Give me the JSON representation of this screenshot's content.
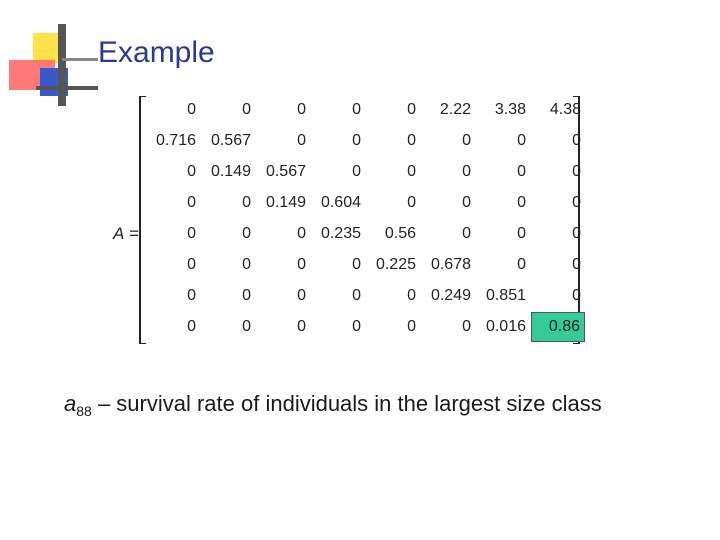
{
  "slide": {
    "title": "Example",
    "matrix_symbol": "A",
    "matrix_equals": " =",
    "matrix": [
      [
        "0",
        "0",
        "0",
        "0",
        "0",
        "2.22",
        "3.38",
        "4.38"
      ],
      [
        "0.716",
        "0.567",
        "0",
        "0",
        "0",
        "0",
        "0",
        "0"
      ],
      [
        "0",
        "0.149",
        "0.567",
        "0",
        "0",
        "0",
        "0",
        "0"
      ],
      [
        "0",
        "0",
        "0.149",
        "0.604",
        "0",
        "0",
        "0",
        "0"
      ],
      [
        "0",
        "0",
        "0",
        "0.235",
        "0.56",
        "0",
        "0",
        "0"
      ],
      [
        "0",
        "0",
        "0",
        "0",
        "0.225",
        "0.678",
        "0",
        "0"
      ],
      [
        "0",
        "0",
        "0",
        "0",
        "0",
        "0.249",
        "0.851",
        "0"
      ],
      [
        "0",
        "0",
        "0",
        "0",
        "0",
        "0",
        "0.016",
        "0.86"
      ]
    ],
    "highlight_cell": {
      "row": 7,
      "col": 7,
      "color": "#33cc99"
    },
    "caption": {
      "var": "a",
      "subscript": "88",
      "text": " – survival rate of individuals in the largest size class"
    }
  }
}
